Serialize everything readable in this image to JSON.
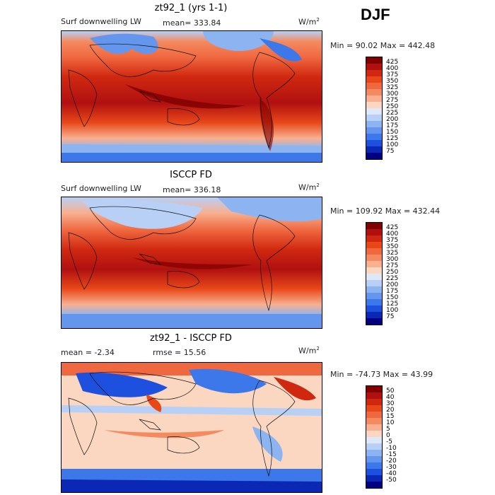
{
  "season": "DJF",
  "panels": [
    {
      "title": "zt92_1 (yrs 1-1)",
      "variable": "Surf downwelling LW",
      "stat": "mean=  333.84",
      "units": "W/m",
      "units_sup": "2",
      "minmax": "Min =   90.02 Max =  442.48",
      "scale": [
        "425",
        "400",
        "375",
        "350",
        "325",
        "300",
        "275",
        "250",
        "225",
        "200",
        "175",
        "150",
        "125",
        "100",
        "75"
      ],
      "colors": [
        "#800000",
        "#b01010",
        "#d02810",
        "#e84818",
        "#f06840",
        "#f48a60",
        "#f8b090",
        "#fbd6c0",
        "#dfe8f8",
        "#b8d0f6",
        "#8cb4f0",
        "#6496ee",
        "#3c78ea",
        "#1e50e0",
        "#0a28b4",
        "#000080"
      ]
    },
    {
      "title": "ISCCP FD",
      "variable": "Surf downwelling LW",
      "stat": "mean=  336.18",
      "units": "W/m",
      "units_sup": "2",
      "minmax": "Min =  109.92 Max =  432.44",
      "scale": [
        "425",
        "400",
        "375",
        "350",
        "325",
        "300",
        "275",
        "250",
        "225",
        "200",
        "175",
        "150",
        "125",
        "100",
        "75"
      ],
      "colors": [
        "#800000",
        "#b01010",
        "#d02810",
        "#e84818",
        "#f06840",
        "#f48a60",
        "#f8b090",
        "#fbd6c0",
        "#dfe8f8",
        "#b8d0f6",
        "#8cb4f0",
        "#6496ee",
        "#3c78ea",
        "#1e50e0",
        "#0a28b4",
        "#000080"
      ]
    },
    {
      "title": "zt92_1 - ISCCP FD",
      "variable": "",
      "stat": "mean =   -2.34",
      "stat2": "rmse =   15.56",
      "units": "W/m",
      "units_sup": "2",
      "minmax": "Min = -74.73 Max =   43.99",
      "scale": [
        "50",
        "40",
        "30",
        "20",
        "15",
        "10",
        "5",
        "0",
        "-5",
        "-10",
        "-15",
        "-20",
        "-30",
        "-40",
        "-50"
      ],
      "colors": [
        "#800000",
        "#b01010",
        "#d02810",
        "#e84818",
        "#f06840",
        "#f48a60",
        "#f8b090",
        "#fbd6c0",
        "#dfe8f8",
        "#b8d0f6",
        "#8cb4f0",
        "#6496ee",
        "#3c78ea",
        "#1e50e0",
        "#0a28b4",
        "#000080"
      ]
    }
  ]
}
